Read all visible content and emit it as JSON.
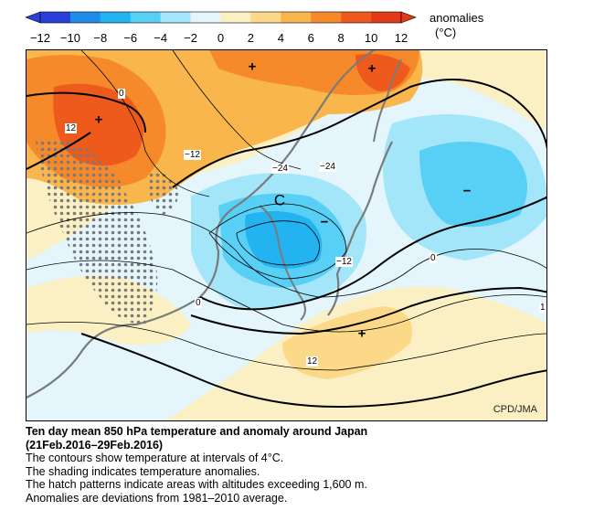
{
  "colorbar": {
    "title": "anomalies",
    "unit": "(°C)",
    "ticks": [
      "−12",
      "−10",
      "−8",
      "−6",
      "−4",
      "−2",
      "0",
      "2",
      "4",
      "6",
      "8",
      "10",
      "12"
    ],
    "colors": [
      "#2a3fd6",
      "#1f8de8",
      "#23b3f0",
      "#58cff5",
      "#a3e6fa",
      "#e4f6fc",
      "#fbf0c4",
      "#fbd988",
      "#f9b64d",
      "#f68a2a",
      "#ee5a1c",
      "#e23a16"
    ]
  },
  "map": {
    "contour_labels": [
      "0",
      "12",
      "−12",
      "−24",
      "−24",
      "−12",
      "0",
      "0",
      "12",
      "1"
    ],
    "symbols": [
      "+",
      "+",
      "+",
      "−",
      "−",
      "+",
      "C"
    ],
    "credit": "CPD/JMA"
  },
  "caption": {
    "title_line1": "Ten day mean 850 hPa temperature and anomaly around Japan",
    "title_line2": "(21Feb.2016–29Feb.2016)",
    "line1": "The contours show temperature at intervals of 4°C.",
    "line2": "The shading indicates temperature anomalies.",
    "line3": "The hatch patterns indicate areas with altitudes exceeding 1,600 m.",
    "line4": "Anomalies are deviations from 1981–2010 average."
  }
}
